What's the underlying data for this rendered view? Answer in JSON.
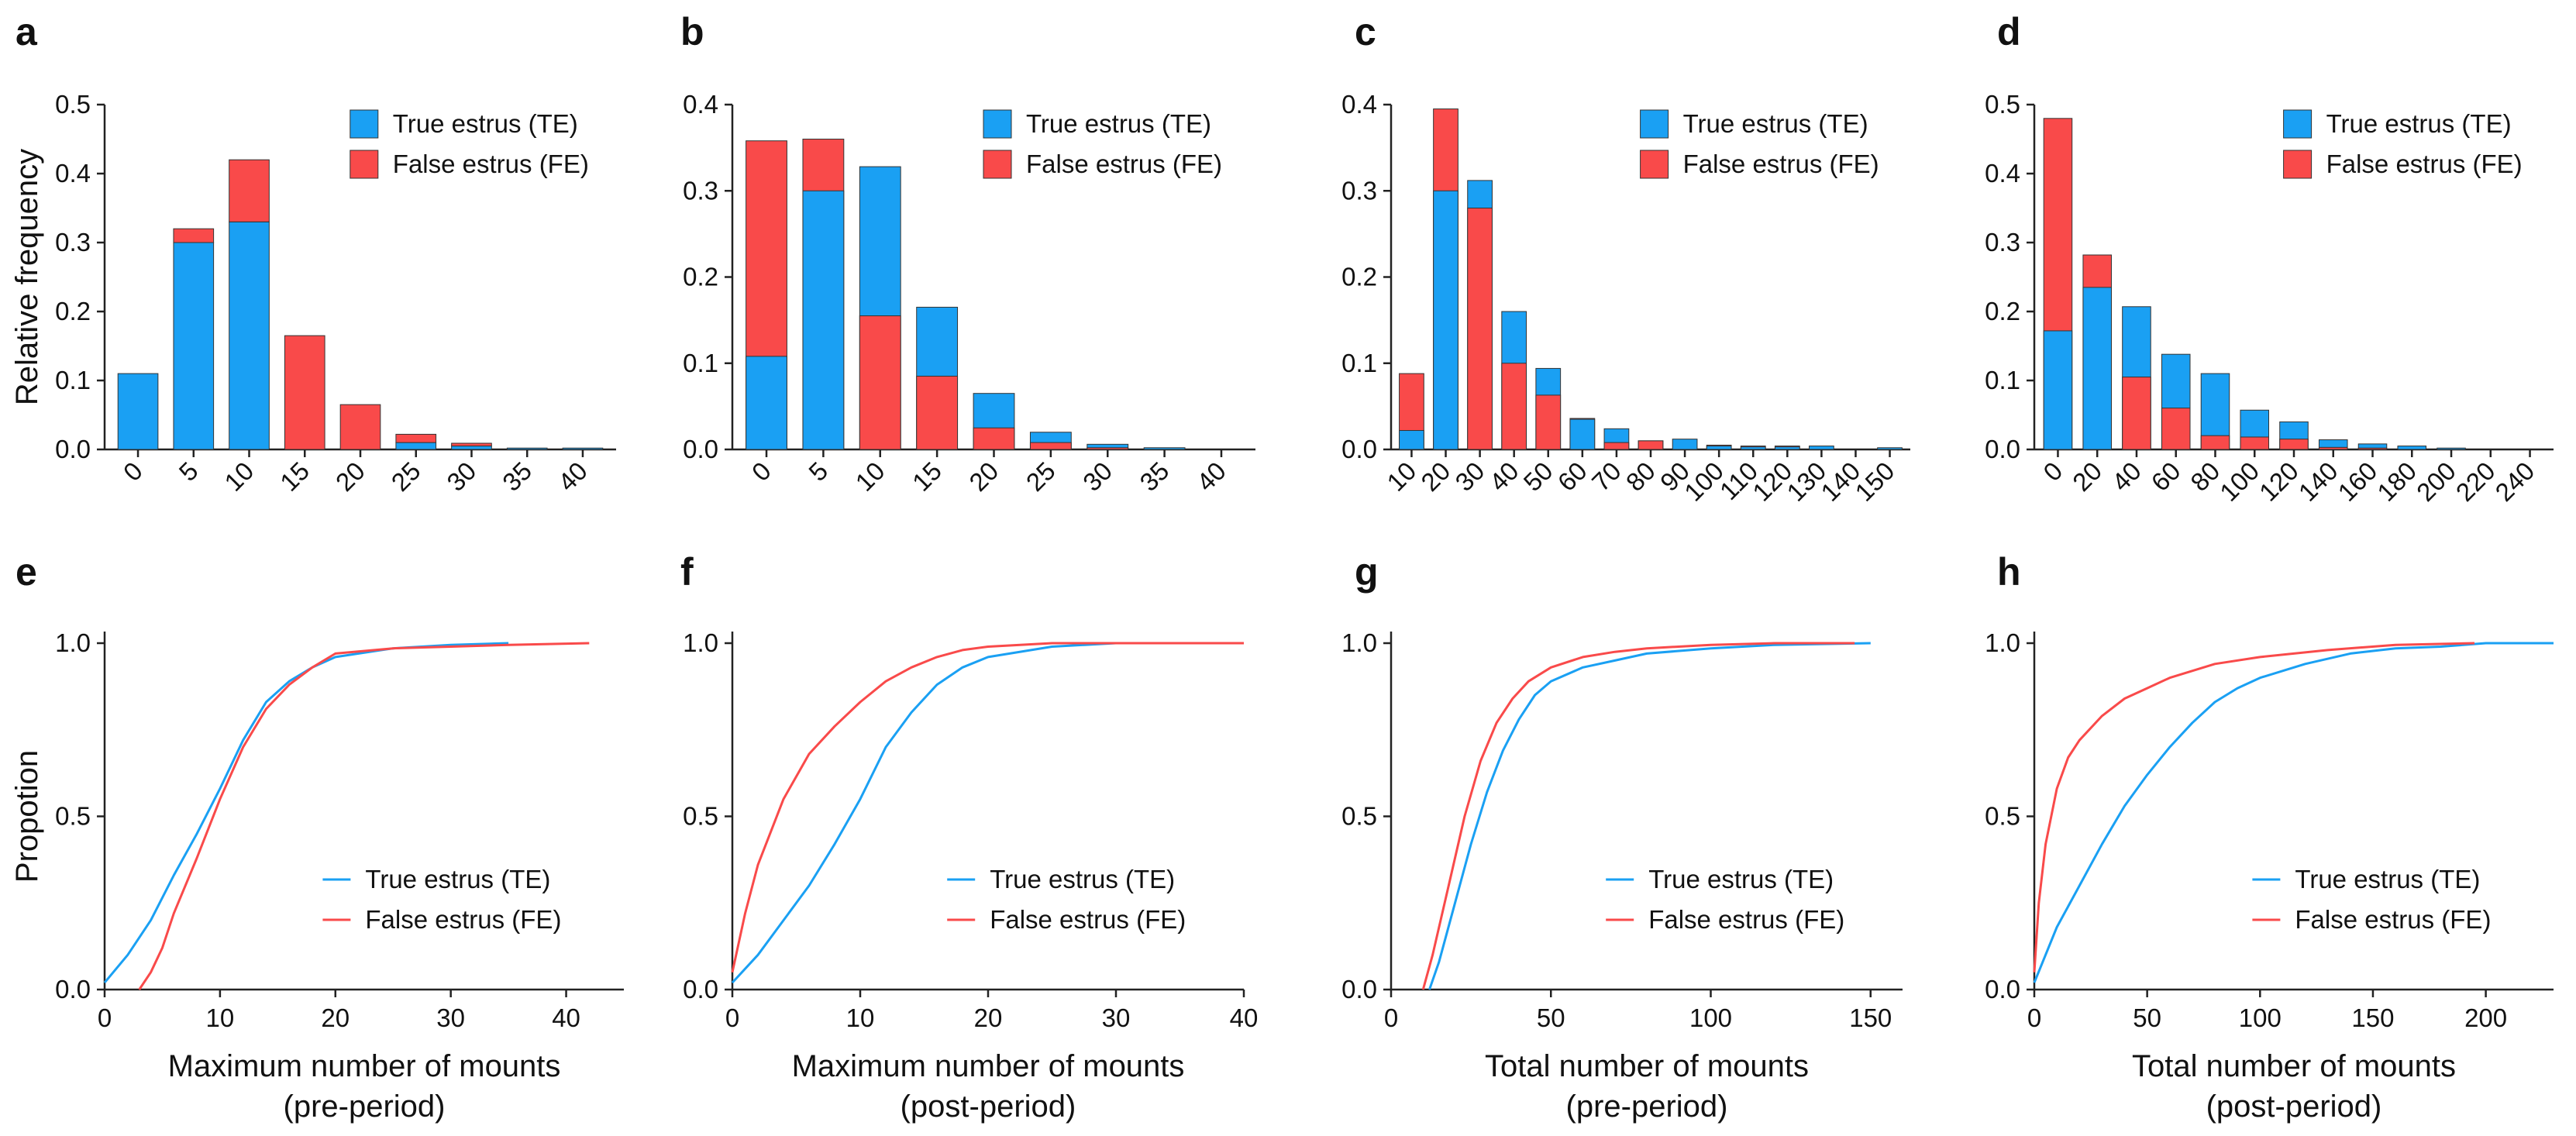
{
  "colors": {
    "te": "#1aa0f3",
    "fe": "#f94a4a"
  },
  "chart_data": [
    {
      "panel": "a",
      "type": "bar",
      "stacking": "stacked",
      "categories": [
        "0",
        "5",
        "10",
        "15",
        "20",
        "25",
        "30",
        "35",
        "40"
      ],
      "series": [
        {
          "name": "True estrus (TE)",
          "values": [
            0.11,
            0.3,
            0.33,
            0.0,
            0.0,
            0.01,
            0.005,
            0.002,
            0.002
          ]
        },
        {
          "name": "False estrus (FE)",
          "values": [
            0.0,
            0.02,
            0.09,
            0.165,
            0.065,
            0.012,
            0.004,
            0.0,
            0.0
          ]
        }
      ],
      "ylabel": "Relative frequency",
      "xlabel_lines": [],
      "ylim": [
        0,
        0.5
      ],
      "yticks": [
        "0.0",
        "0.1",
        "0.2",
        "0.3",
        "0.4",
        "0.5"
      ],
      "legend": "top-right"
    },
    {
      "panel": "b",
      "type": "bar",
      "stacking": "overlay",
      "categories": [
        "0",
        "5",
        "10",
        "15",
        "20",
        "25",
        "30",
        "35",
        "40"
      ],
      "series": [
        {
          "name": "True estrus (TE)",
          "values": [
            0.108,
            0.3,
            0.328,
            0.165,
            0.065,
            0.02,
            0.006,
            0.002,
            0.0
          ]
        },
        {
          "name": "False estrus (FE)",
          "values": [
            0.358,
            0.36,
            0.155,
            0.085,
            0.025,
            0.008,
            0.002,
            0.0,
            0.0
          ]
        }
      ],
      "ylabel": "",
      "xlabel_lines": [],
      "ylim": [
        0,
        0.4
      ],
      "yticks": [
        "0.0",
        "0.1",
        "0.2",
        "0.3",
        "0.4"
      ],
      "legend": "top-right"
    },
    {
      "panel": "c",
      "type": "bar",
      "stacking": "overlay",
      "categories": [
        "10",
        "20",
        "30",
        "40",
        "50",
        "60",
        "70",
        "80",
        "90",
        "100",
        "110",
        "120",
        "130",
        "140",
        "150"
      ],
      "series": [
        {
          "name": "True estrus (TE)",
          "values": [
            0.022,
            0.3,
            0.312,
            0.16,
            0.094,
            0.035,
            0.024,
            0.01,
            0.012,
            0.004,
            0.003,
            0.003,
            0.004,
            0.0,
            0.002
          ]
        },
        {
          "name": "False estrus (FE)",
          "values": [
            0.088,
            0.395,
            0.28,
            0.1,
            0.063,
            0.036,
            0.008,
            0.01,
            0.0,
            0.005,
            0.004,
            0.004,
            0.0,
            0.0,
            0.0
          ]
        }
      ],
      "ylabel": "",
      "xlabel_lines": [],
      "ylim": [
        0,
        0.4
      ],
      "yticks": [
        "0.0",
        "0.1",
        "0.2",
        "0.3",
        "0.4"
      ],
      "legend": "top-right"
    },
    {
      "panel": "d",
      "type": "bar",
      "stacking": "overlay",
      "categories": [
        "0",
        "20",
        "40",
        "60",
        "80",
        "100",
        "120",
        "140",
        "160",
        "180",
        "200",
        "220",
        "240"
      ],
      "series": [
        {
          "name": "True estrus (TE)",
          "values": [
            0.172,
            0.235,
            0.207,
            0.138,
            0.11,
            0.057,
            0.04,
            0.014,
            0.008,
            0.005,
            0.002,
            0.0,
            0.0
          ]
        },
        {
          "name": "False estrus (FE)",
          "values": [
            0.48,
            0.282,
            0.105,
            0.06,
            0.02,
            0.018,
            0.015,
            0.003,
            0.002,
            0.0,
            0.0,
            0.0,
            0.0
          ]
        }
      ],
      "ylabel": "",
      "xlabel_lines": [],
      "ylim": [
        0,
        0.5
      ],
      "yticks": [
        "0.0",
        "0.1",
        "0.2",
        "0.3",
        "0.4",
        "0.5"
      ],
      "legend": "top-right"
    },
    {
      "panel": "e",
      "type": "line",
      "xlim": [
        0,
        45
      ],
      "xticks": [
        0,
        10,
        20,
        30,
        40
      ],
      "ylim": [
        0,
        1.0
      ],
      "yticks": [
        "0.0",
        "0.5",
        "1.0"
      ],
      "ylabel": "Propotion",
      "xlabel_lines": [
        "Maximum number of mounts",
        "(pre-period)"
      ],
      "legend": "lower-right",
      "series": [
        {
          "name": "True estrus (TE)",
          "x": [
            0,
            2,
            4,
            6,
            8,
            10,
            12,
            14,
            16,
            18,
            20,
            25,
            30,
            35
          ],
          "y": [
            0.02,
            0.1,
            0.2,
            0.33,
            0.45,
            0.58,
            0.72,
            0.83,
            0.89,
            0.93,
            0.96,
            0.985,
            0.995,
            1.0
          ]
        },
        {
          "name": "False estrus (FE)",
          "x": [
            3,
            4,
            5,
            6,
            8,
            10,
            12,
            14,
            16,
            18,
            20,
            25,
            30,
            35,
            42
          ],
          "y": [
            0.0,
            0.05,
            0.12,
            0.22,
            0.38,
            0.55,
            0.7,
            0.81,
            0.88,
            0.93,
            0.97,
            0.985,
            0.99,
            0.995,
            1.0
          ]
        }
      ]
    },
    {
      "panel": "f",
      "type": "line",
      "xlim": [
        0,
        40
      ],
      "xticks": [
        0,
        10,
        20,
        30,
        40
      ],
      "ylim": [
        0,
        1.0
      ],
      "yticks": [
        "0.0",
        "0.5",
        "1.0"
      ],
      "ylabel": "",
      "xlabel_lines": [
        "Maximum number of mounts",
        "(post-period)"
      ],
      "legend": "lower-right",
      "series": [
        {
          "name": "True estrus (TE)",
          "x": [
            0,
            2,
            4,
            6,
            8,
            10,
            12,
            14,
            16,
            18,
            20,
            25,
            30,
            35
          ],
          "y": [
            0.02,
            0.1,
            0.2,
            0.3,
            0.42,
            0.55,
            0.7,
            0.8,
            0.88,
            0.93,
            0.96,
            0.99,
            1.0,
            1.0
          ]
        },
        {
          "name": "False estrus (FE)",
          "x": [
            0,
            1,
            2,
            4,
            6,
            8,
            10,
            12,
            14,
            16,
            18,
            20,
            25,
            30,
            40
          ],
          "y": [
            0.05,
            0.22,
            0.36,
            0.55,
            0.68,
            0.76,
            0.83,
            0.89,
            0.93,
            0.96,
            0.98,
            0.99,
            1.0,
            1.0,
            1.0
          ]
        }
      ]
    },
    {
      "panel": "g",
      "type": "line",
      "xlim": [
        0,
        160
      ],
      "xticks": [
        0,
        50,
        100,
        150
      ],
      "ylim": [
        0,
        1.0
      ],
      "yticks": [
        "0.0",
        "0.5",
        "1.0"
      ],
      "ylabel": "",
      "xlabel_lines": [
        "Total number of mounts",
        "(pre-period)"
      ],
      "legend": "lower-right",
      "series": [
        {
          "name": "True estrus (TE)",
          "x": [
            12,
            15,
            20,
            25,
            30,
            35,
            40,
            45,
            50,
            60,
            70,
            80,
            100,
            120,
            150
          ],
          "y": [
            0.0,
            0.08,
            0.25,
            0.42,
            0.57,
            0.69,
            0.78,
            0.85,
            0.89,
            0.93,
            0.95,
            0.97,
            0.985,
            0.995,
            1.0
          ]
        },
        {
          "name": "False estrus (FE)",
          "x": [
            10,
            13,
            18,
            23,
            28,
            33,
            38,
            43,
            50,
            60,
            70,
            80,
            100,
            120,
            145
          ],
          "y": [
            0.0,
            0.1,
            0.3,
            0.5,
            0.66,
            0.77,
            0.84,
            0.89,
            0.93,
            0.96,
            0.975,
            0.985,
            0.995,
            1.0,
            1.0
          ]
        }
      ]
    },
    {
      "panel": "h",
      "type": "line",
      "xlim": [
        0,
        230
      ],
      "xticks": [
        0,
        50,
        100,
        150,
        200
      ],
      "ylim": [
        0,
        1.0
      ],
      "yticks": [
        "0.0",
        "0.5",
        "1.0"
      ],
      "ylabel": "",
      "xlabel_lines": [
        "Total number of mounts",
        "(post-period)"
      ],
      "legend": "lower-right",
      "series": [
        {
          "name": "True estrus (TE)",
          "x": [
            0,
            10,
            20,
            30,
            40,
            50,
            60,
            70,
            80,
            90,
            100,
            120,
            140,
            160,
            180,
            200,
            230
          ],
          "y": [
            0.02,
            0.18,
            0.3,
            0.42,
            0.53,
            0.62,
            0.7,
            0.77,
            0.83,
            0.87,
            0.9,
            0.94,
            0.97,
            0.985,
            0.99,
            1.0,
            1.0
          ]
        },
        {
          "name": "False estrus (FE)",
          "x": [
            0,
            2,
            5,
            10,
            15,
            20,
            30,
            40,
            50,
            60,
            80,
            100,
            130,
            160,
            195
          ],
          "y": [
            0.05,
            0.25,
            0.42,
            0.58,
            0.67,
            0.72,
            0.79,
            0.84,
            0.87,
            0.9,
            0.94,
            0.96,
            0.98,
            0.995,
            1.0
          ]
        }
      ]
    }
  ]
}
